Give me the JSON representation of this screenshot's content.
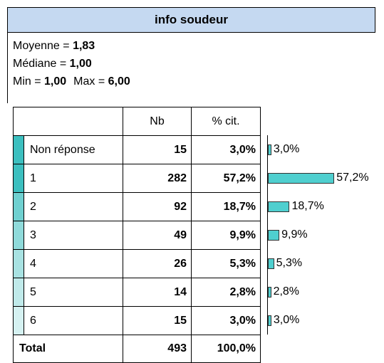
{
  "header": {
    "title": "info soudeur"
  },
  "stats": [
    [
      {
        "label": "Moyenne =",
        "value": "1,83"
      }
    ],
    [
      {
        "label": "Médiane =",
        "value": "1,00"
      }
    ],
    [
      {
        "label": "Min =",
        "value": "1,00"
      },
      {
        "label": "Max =",
        "value": "6,00"
      }
    ]
  ],
  "table": {
    "columns": [
      "Nb",
      "% cit."
    ],
    "rows": [
      {
        "label": "Non réponse",
        "nb": 15,
        "pct": 3.0,
        "pct_label": "3,0%",
        "color": "#3cbfbf"
      },
      {
        "label": "1",
        "nb": 282,
        "pct": 57.2,
        "pct_label": "57,2%",
        "color": "#3cbfbf"
      },
      {
        "label": "2",
        "nb": 92,
        "pct": 18.7,
        "pct_label": "18,7%",
        "color": "#6fd0d0"
      },
      {
        "label": "3",
        "nb": 49,
        "pct": 9.9,
        "pct_label": "9,9%",
        "color": "#8fdada"
      },
      {
        "label": "4",
        "nb": 26,
        "pct": 5.3,
        "pct_label": "5,3%",
        "color": "#a8e2e2"
      },
      {
        "label": "5",
        "nb": 14,
        "pct": 2.8,
        "pct_label": "2,8%",
        "color": "#c0eaea"
      },
      {
        "label": "6",
        "nb": 15,
        "pct": 3.0,
        "pct_label": "3,0%",
        "color": "#d5f1f1"
      }
    ],
    "total": {
      "label": "Total",
      "nb": 493,
      "pct_label": "100,0%"
    },
    "bar_color": "#4fcfcf"
  }
}
